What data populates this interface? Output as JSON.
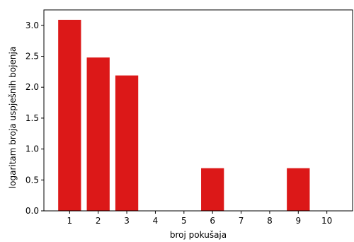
{
  "chart_data": {
    "type": "bar",
    "title": "",
    "xlabel": "broj pokušaja",
    "ylabel": "logaritam broja uspješnih bojenja",
    "categories": [
      1,
      2,
      3,
      4,
      5,
      6,
      7,
      8,
      9,
      10
    ],
    "values": [
      3.09,
      2.48,
      2.19,
      0,
      0,
      0.69,
      0,
      0,
      0.69,
      0
    ],
    "ylim": [
      0,
      3.25
    ],
    "yticks": [
      "0.0",
      "0.5",
      "1.0",
      "1.5",
      "2.0",
      "2.5",
      "3.0"
    ],
    "grid": false,
    "bar_color": "#dc1818",
    "legend": "none"
  }
}
